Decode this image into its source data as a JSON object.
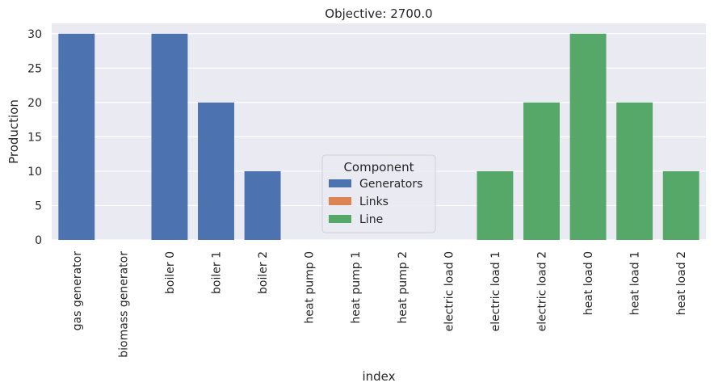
{
  "chart_data": {
    "type": "bar",
    "title": "Objective: 2700.0",
    "xlabel": "index",
    "ylabel": "Production",
    "ylim": [
      0,
      31.5
    ],
    "yticks": [
      0,
      5,
      10,
      15,
      20,
      25,
      30
    ],
    "grid": true,
    "legend": {
      "title": "Component",
      "placement": "center",
      "entries": [
        "Generators",
        "Links",
        "Line"
      ]
    },
    "colors": {
      "Generators": "#4c72b0",
      "Links": "#dd8452",
      "Line": "#55a868",
      "plot_background": "#eaeaf2",
      "grid": "#ffffff"
    },
    "categories": [
      "gas generator",
      "biomass generator",
      "boiler 0",
      "boiler 1",
      "boiler 2",
      "heat pump 0",
      "heat pump 1",
      "heat pump 2",
      "electric load 0",
      "electric load 1",
      "electric load 2",
      "heat load 0",
      "heat load 1",
      "heat load 2"
    ],
    "values": [
      30,
      0,
      30,
      20,
      10,
      0,
      0,
      0,
      0,
      10,
      20,
      30,
      20,
      10
    ],
    "component": [
      "Generators",
      "Generators",
      "Generators",
      "Generators",
      "Generators",
      "Links",
      "Links",
      "Links",
      "Line",
      "Line",
      "Line",
      "Line",
      "Line",
      "Line"
    ]
  }
}
